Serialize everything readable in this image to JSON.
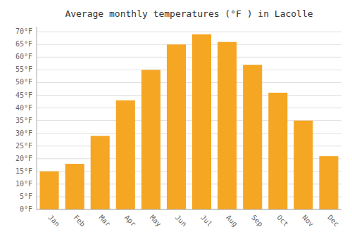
{
  "chart_data": {
    "type": "bar",
    "title": "Average monthly temperatures (°F ) in Lacolle",
    "categories": [
      "Jan",
      "Feb",
      "Mar",
      "Apr",
      "May",
      "Jun",
      "Jul",
      "Aug",
      "Sep",
      "Oct",
      "Nov",
      "Dec"
    ],
    "values": [
      15,
      18,
      29,
      43,
      55,
      65,
      69,
      66,
      57,
      46,
      35,
      21
    ],
    "color": "#F5A623",
    "ylim": [
      0,
      72
    ],
    "yticks": [
      {
        "value": 0,
        "label": "0°F"
      },
      {
        "value": 5,
        "label": "5°F"
      },
      {
        "value": 10,
        "label": "10°F"
      },
      {
        "value": 15,
        "label": "15°F"
      },
      {
        "value": 20,
        "label": "20°F"
      },
      {
        "value": 25,
        "label": "25°F"
      },
      {
        "value": 30,
        "label": "30°F"
      },
      {
        "value": 35,
        "label": "35°F"
      },
      {
        "value": 40,
        "label": "40°F"
      },
      {
        "value": 45,
        "label": "45°F"
      },
      {
        "value": 50,
        "label": "50°F"
      },
      {
        "value": 55,
        "label": "55°F"
      },
      {
        "value": 60,
        "label": "60°F"
      },
      {
        "value": 65,
        "label": "65°F"
      },
      {
        "value": 70,
        "label": "70°F"
      }
    ],
    "grid": true
  }
}
